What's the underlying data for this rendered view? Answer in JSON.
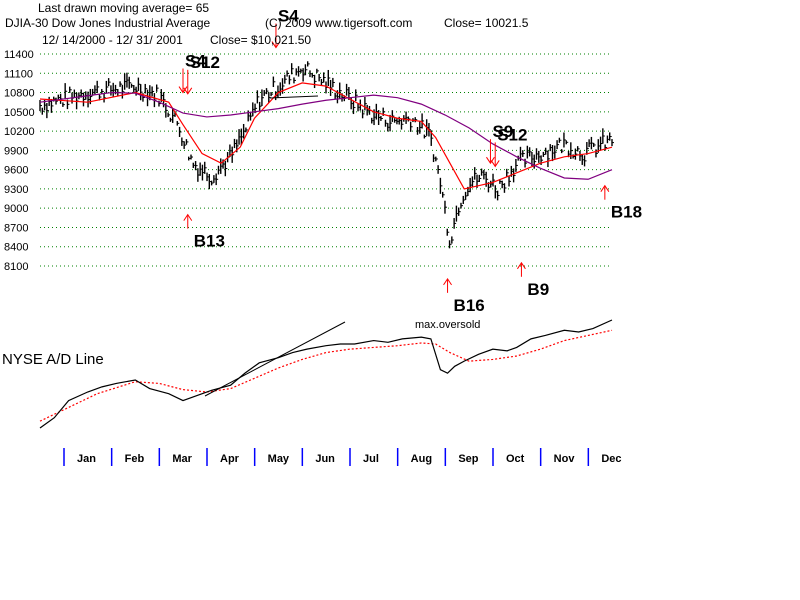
{
  "header": {
    "line1": "Last drawn moving average= 65",
    "line2": "DJIA-30  Dow Jones Industrial Average",
    "line3": "12/ 14/2000 -  12/ 31/ 2001",
    "copyright": "(C) 2009 www.tigersoft.com",
    "close_label": "Close=  10021.5",
    "close_overlay": "Close= $10,021.50"
  },
  "ad_title": "NYSE A/D Line",
  "oversold_note": "max.oversold",
  "colors": {
    "price_bars": "#000000",
    "ma_short": "#ff0000",
    "ma_long": "#800080",
    "gridline": "#008000",
    "signal": "#ff0000",
    "month_tick": "#0000ff",
    "ad_line": "#000000",
    "ad_ma": "#ff0000"
  },
  "chart_data": {
    "type": "line",
    "title": "DJIA-30  Dow Jones Industrial Average",
    "y_ticks": [
      11400,
      11100,
      10800,
      10500,
      10200,
      9900,
      9600,
      9300,
      9000,
      8700,
      8400,
      8100
    ],
    "ylim": [
      7950,
      11650
    ],
    "months": [
      "Jan",
      "Feb",
      "Mar",
      "Apr",
      "May",
      "Jun",
      "Jul",
      "Aug",
      "Sep",
      "Oct",
      "Nov",
      "Dec"
    ],
    "grid": "horizontal dotted",
    "series": [
      {
        "kind": "daily high-low bars",
        "x": [
          0,
          0.5,
          1,
          1.5,
          2,
          2.5,
          2.9,
          3.2,
          3.6,
          4,
          4.3,
          4.6,
          5,
          5.5,
          6,
          6.5,
          7,
          7.4,
          7.8,
          8.2,
          8.4,
          8.6,
          8.8,
          9,
          9.3,
          9.6,
          10,
          10.5,
          11,
          11.4,
          11.8,
          12
        ],
        "y": [
          10600,
          10700,
          10800,
          10850,
          10900,
          10750,
          10300,
          9700,
          9500,
          9800,
          10200,
          10700,
          10900,
          11200,
          10950,
          10700,
          10450,
          10350,
          10400,
          10100,
          9400,
          8500,
          9100,
          9400,
          9500,
          9300,
          9700,
          9850,
          10000,
          9850,
          10000,
          10050
        ]
      },
      {
        "name": "",
        "kind": "short moving average",
        "x": [
          0,
          1,
          2,
          2.7,
          3,
          3.4,
          3.8,
          4.2,
          4.5,
          5,
          5.5,
          6,
          6.5,
          7,
          7.5,
          8,
          8.3,
          8.6,
          8.9,
          9.2,
          9.5,
          10,
          10.5,
          11,
          11.5,
          12
        ],
        "y": [
          10700,
          10650,
          10800,
          10650,
          10300,
          9850,
          9700,
          9950,
          10400,
          10800,
          10950,
          10900,
          10700,
          10500,
          10400,
          10350,
          10100,
          9700,
          9300,
          9350,
          9400,
          9550,
          9700,
          9800,
          9850,
          9950
        ]
      },
      {
        "name": "",
        "kind": "65-day moving average",
        "x": [
          0,
          1,
          1.5,
          2,
          2.5,
          3,
          3.5,
          4,
          4.5,
          5,
          5.5,
          6,
          6.5,
          7,
          7.5,
          8,
          8.5,
          9,
          9.5,
          10,
          10.5,
          11,
          11.5,
          12
        ],
        "y": [
          10650,
          10750,
          10800,
          10790,
          10650,
          10480,
          10420,
          10450,
          10500,
          10550,
          10620,
          10680,
          10720,
          10760,
          10720,
          10620,
          10450,
          10250,
          10000,
          9800,
          9620,
          9470,
          9450,
          9600
        ]
      }
    ],
    "ad_line": {
      "x": [
        0,
        0.3,
        0.6,
        1,
        1.3,
        1.6,
        2,
        2.3,
        2.7,
        3,
        3.3,
        3.6,
        4,
        4.3,
        4.6,
        5,
        5.3,
        5.6,
        6,
        6.3,
        6.6,
        7,
        7.3,
        7.6,
        8,
        8.2,
        8.4,
        8.55,
        8.7,
        8.9,
        9.2,
        9.5,
        9.8,
        10,
        10.3,
        10.6,
        11,
        11.3,
        11.6,
        12
      ],
      "y": [
        -20,
        10,
        60,
        85,
        100,
        110,
        120,
        95,
        80,
        60,
        75,
        90,
        105,
        140,
        170,
        185,
        200,
        210,
        220,
        225,
        225,
        235,
        230,
        240,
        245,
        240,
        150,
        140,
        160,
        175,
        195,
        210,
        205,
        215,
        240,
        250,
        265,
        260,
        270,
        295
      ]
    },
    "ad_ma": {
      "x": [
        0,
        0.6,
        1.2,
        2,
        2.5,
        3,
        3.5,
        4,
        4.5,
        5,
        5.5,
        6,
        6.5,
        7,
        7.5,
        8,
        8.3,
        8.6,
        9,
        9.5,
        10,
        10.5,
        11,
        11.5,
        12
      ],
      "y": [
        0,
        40,
        80,
        115,
        110,
        92,
        85,
        95,
        125,
        155,
        180,
        200,
        210,
        215,
        220,
        228,
        225,
        200,
        175,
        180,
        190,
        210,
        235,
        250,
        265
      ]
    },
    "signals": [
      {
        "label": "S4",
        "month": 3.0,
        "value": 10800,
        "direction": "sell"
      },
      {
        "label": "S12",
        "month": 3.1,
        "value": 10780,
        "direction": "sell"
      },
      {
        "label": "S4",
        "month": 4.95,
        "value": 11500,
        "direction": "sell"
      },
      {
        "label": "B13",
        "month": 3.1,
        "value": 8900,
        "direction": "buy"
      },
      {
        "label": "S9",
        "month": 9.45,
        "value": 9700,
        "direction": "sell"
      },
      {
        "label": "S12",
        "month": 9.55,
        "value": 9650,
        "direction": "sell"
      },
      {
        "label": "B16",
        "month": 8.55,
        "value": 7900,
        "direction": "buy"
      },
      {
        "label": "B9",
        "month": 10.1,
        "value": 8150,
        "direction": "buy"
      },
      {
        "label": "B18",
        "month": 11.85,
        "value": 9350,
        "direction": "buy"
      }
    ]
  }
}
